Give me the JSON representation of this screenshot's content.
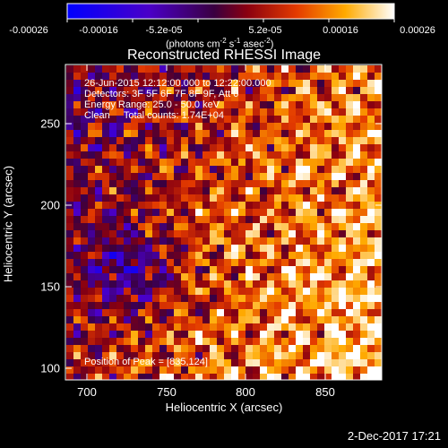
{
  "colorbar": {
    "ticks": [
      "-0.00026",
      "-0.00016",
      "-5.2e-05",
      "5.2e-05",
      "0.00016",
      "0.00026"
    ],
    "units_text": "(photons cm",
    "units_exp1": "-2",
    "units_mid": " s",
    "units_exp2": "-1",
    "units_mid2": " asec",
    "units_exp3": "-2",
    "units_end": ")"
  },
  "title": "Reconstructed RHESSI Image",
  "annotations": {
    "line1": "26-Jun-2015 12:12:00.000 to 12:22:00.000",
    "line2": "Detectors: 3F 5F 6F 7F 8F 9F, Att 0",
    "line3": "Energy Range: 25.0 - 50.0 keV",
    "line4": "Clean     Total counts: 1.74E+04",
    "peak": "Position of Peak = [835,124]"
  },
  "axes": {
    "xlabel": "Heliocentric X (arcsec)",
    "ylabel": "Heliocentric Y (arcsec)",
    "xticks": [
      "700",
      "750",
      "800",
      "850"
    ],
    "yticks": [
      "100",
      "150",
      "200",
      "250"
    ]
  },
  "footer_date": "2-Dec-2017 17:21",
  "colors": {
    "background": "#000000",
    "colormap_low": "#0000ff",
    "colormap_mid": "#3a0040",
    "colormap_high": "#ffffff"
  }
}
